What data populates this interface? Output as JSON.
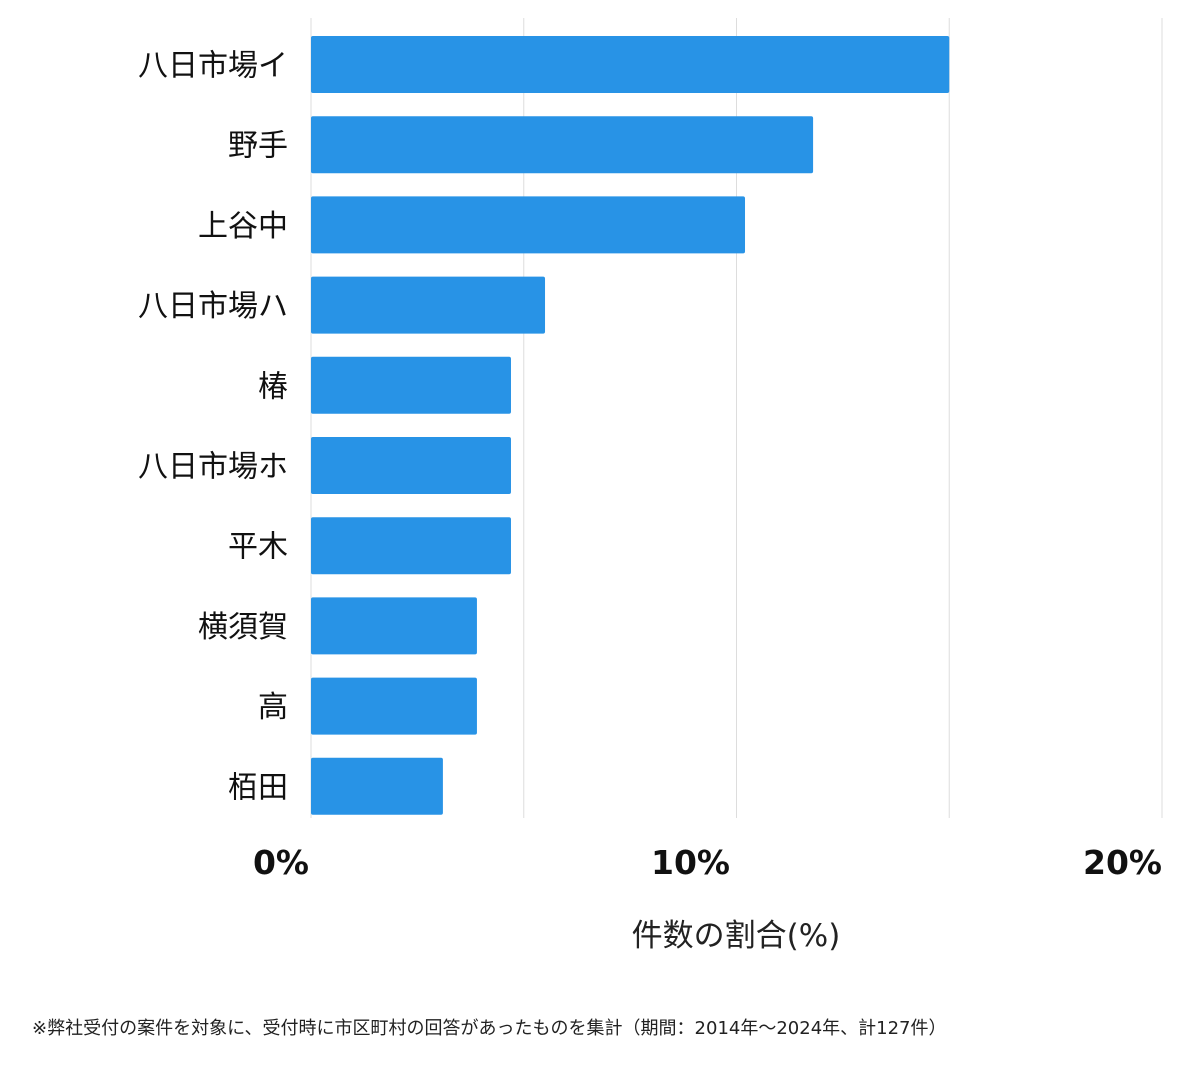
{
  "chart_data": {
    "type": "bar",
    "orientation": "horizontal",
    "categories": [
      "八日市場イ",
      "野手",
      "上谷中",
      "八日市場ハ",
      "椿",
      "八日市場ホ",
      "平木",
      "横須賀",
      "高",
      "栢田"
    ],
    "values": [
      15.0,
      11.8,
      10.2,
      5.5,
      4.7,
      4.7,
      4.7,
      3.9,
      3.9,
      3.1
    ],
    "xlim": [
      0,
      20
    ],
    "xticks": [
      {
        "value": 0,
        "label": "0%"
      },
      {
        "value": 10,
        "label": "10%"
      },
      {
        "value": 20,
        "label": "20%"
      }
    ],
    "gridlines_at": [
      0,
      5,
      10,
      15,
      20
    ],
    "xlabel": "件数の割合(%)",
    "ylabel": "",
    "grid": true,
    "bar_color": "#2893E6",
    "grid_color": "#DDDDDD"
  },
  "footnote": "※弊社受付の案件を対象に、受付時に市区町村の回答があったものを集計（期間：2014年〜2024年、計127件）"
}
